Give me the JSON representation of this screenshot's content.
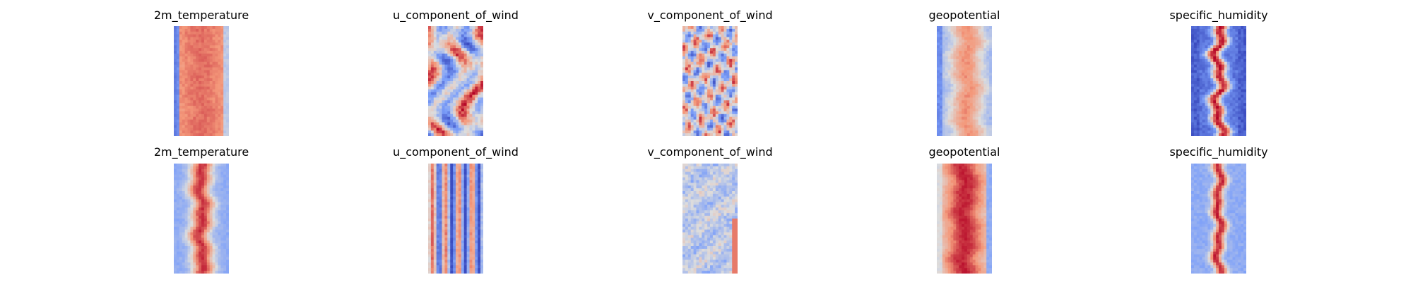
{
  "chart_data": [
    {
      "type": "heatmap",
      "title": "2m_temperature",
      "pattern": "warm-core",
      "colormap": "coolwarm",
      "axes_visible": false
    },
    {
      "type": "heatmap",
      "title": "u_component_of_wind",
      "pattern": "streaky",
      "colormap": "coolwarm",
      "axes_visible": false
    },
    {
      "type": "heatmap",
      "title": "v_component_of_wind",
      "pattern": "mottled",
      "colormap": "coolwarm",
      "axes_visible": false
    },
    {
      "type": "heatmap",
      "title": "geopotential",
      "pattern": "warm-core-soft",
      "colormap": "coolwarm",
      "axes_visible": false
    },
    {
      "type": "heatmap",
      "title": "specific_humidity",
      "pattern": "narrow-core",
      "colormap": "coolwarm",
      "axes_visible": false
    },
    {
      "type": "heatmap",
      "title": "2m_temperature",
      "pattern": "warm-core-banded",
      "colormap": "coolwarm",
      "axes_visible": false
    },
    {
      "type": "heatmap",
      "title": "u_component_of_wind",
      "pattern": "vertical-stripes",
      "colormap": "coolwarm",
      "axes_visible": false
    },
    {
      "type": "heatmap",
      "title": "v_component_of_wind",
      "pattern": "pale-noise",
      "colormap": "coolwarm",
      "axes_visible": false
    },
    {
      "type": "heatmap",
      "title": "geopotential",
      "pattern": "hot-core",
      "colormap": "coolwarm",
      "axes_visible": false
    },
    {
      "type": "heatmap",
      "title": "specific_humidity",
      "pattern": "narrow-core-banded",
      "colormap": "coolwarm",
      "axes_visible": false
    }
  ],
  "colors": {
    "cold": "#3b4cc0",
    "neutral": "#dddddd",
    "warm": "#b40426",
    "background": "#ffffff",
    "title_text": "#000000"
  }
}
